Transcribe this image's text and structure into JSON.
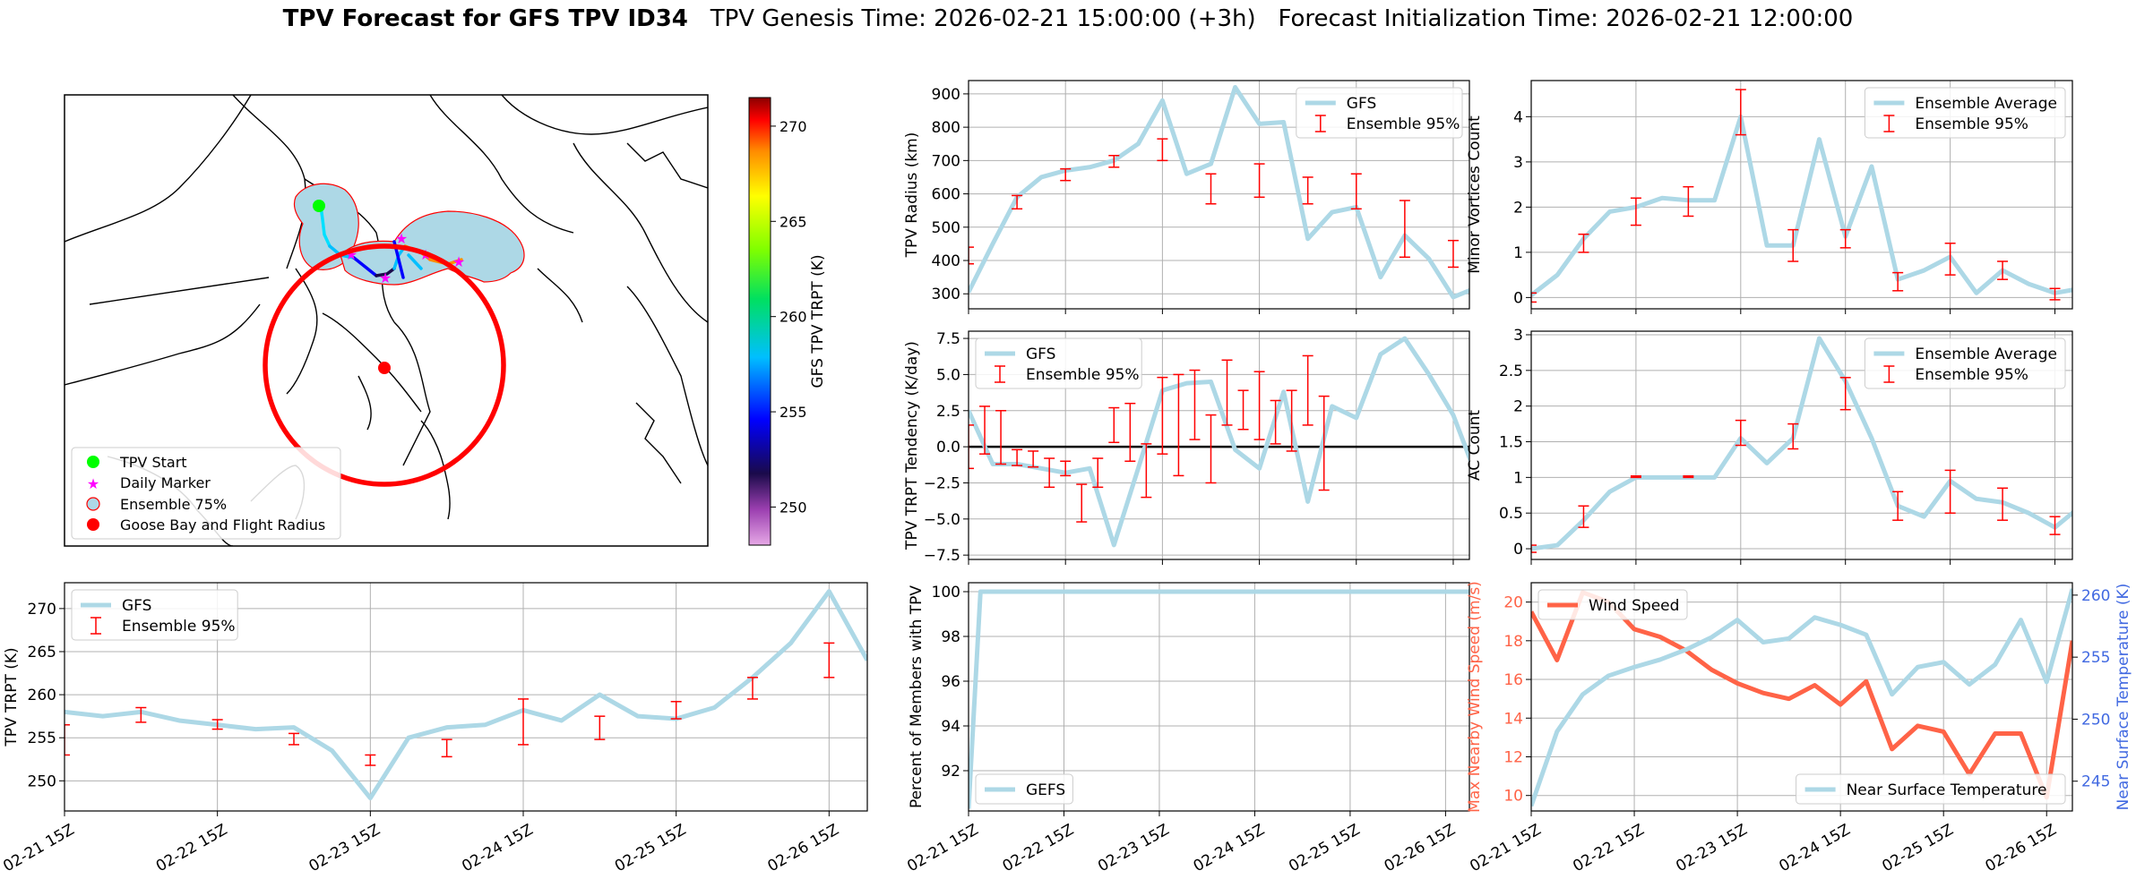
{
  "title": {
    "bold": "TPV Forecast for GFS TPV ID34",
    "genesis": "TPV Genesis Time: 2026-02-21 15:00:00 (+3h)",
    "init": "Forecast Initialization Time: 2026-02-21 12:00:00"
  },
  "colors": {
    "gfs_line": "#add8e6",
    "errorbar": "#ff0000",
    "wind": "#ff6347",
    "temp_axis": "#4169e1",
    "grid": "#b0b0b0"
  },
  "map": {
    "colorbar_label": "GFS TPV TRPT (K)",
    "colorbar_ticks": [
      250,
      255,
      260,
      265,
      270
    ],
    "colorbar_range": [
      248,
      271.5
    ],
    "legend": [
      {
        "label": "TPV Start",
        "icon": "green-dot-icon"
      },
      {
        "label": "Daily Marker",
        "icon": "magenta-star-icon"
      },
      {
        "label": "Ensemble 75%",
        "icon": "lightblue-red-outline-icon"
      },
      {
        "label": "Goose Bay and Flight Radius",
        "icon": "red-dot-icon"
      }
    ]
  },
  "x_ticks": [
    "02-21 15Z",
    "02-22 15Z",
    "02-23 15Z",
    "02-24 15Z",
    "02-25 15Z",
    "02-26 15Z"
  ],
  "chart_data": [
    {
      "id": "radius",
      "type": "line",
      "ylabel": "TPV Radius (km)",
      "ylim": [
        255,
        940
      ],
      "yticks": [
        300,
        400,
        500,
        600,
        700,
        800,
        900
      ],
      "xlim": [
        0,
        124
      ],
      "grid": true,
      "legend_position": "top-right",
      "series": [
        {
          "name": "GFS",
          "x": [
            0,
            6,
            12,
            18,
            24,
            30,
            36,
            42,
            48,
            54,
            60,
            66,
            72,
            78,
            84,
            90,
            96,
            102,
            108,
            114,
            120,
            126
          ],
          "values": [
            305,
            450,
            590,
            650,
            670,
            680,
            700,
            750,
            880,
            660,
            690,
            920,
            810,
            815,
            465,
            545,
            560,
            350,
            475,
            405,
            290,
            320
          ]
        }
      ],
      "errorbars": {
        "name": "Ensemble 95%",
        "x": [
          0,
          12,
          24,
          36,
          48,
          60,
          72,
          84,
          96,
          108,
          120,
          126
        ],
        "low": [
          390,
          555,
          640,
          680,
          700,
          570,
          590,
          570,
          555,
          410,
          380,
          370
        ],
        "high": [
          440,
          595,
          675,
          715,
          765,
          660,
          690,
          650,
          660,
          580,
          460,
          410
        ]
      }
    },
    {
      "id": "minor",
      "type": "line",
      "ylabel": "Minor Vortices Count",
      "ylim": [
        -0.25,
        4.8
      ],
      "yticks": [
        0,
        1,
        2,
        3,
        4
      ],
      "xlim": [
        0,
        124
      ],
      "grid": true,
      "legend_position": "top-right",
      "series": [
        {
          "name": "Ensemble Average",
          "x": [
            0,
            6,
            12,
            18,
            24,
            30,
            36,
            42,
            48,
            54,
            60,
            66,
            72,
            78,
            84,
            90,
            96,
            102,
            108,
            114,
            120,
            126
          ],
          "values": [
            0.05,
            0.5,
            1.3,
            1.9,
            2.0,
            2.2,
            2.15,
            2.15,
            4.0,
            1.15,
            1.15,
            3.5,
            1.35,
            2.9,
            0.4,
            0.6,
            0.9,
            0.1,
            0.6,
            0.3,
            0.1,
            0.2
          ]
        }
      ],
      "errorbars": {
        "name": "Ensemble 95%",
        "x": [
          0,
          12,
          24,
          36,
          48,
          60,
          72,
          84,
          96,
          108,
          120
        ],
        "low": [
          -0.1,
          1.0,
          1.6,
          1.8,
          3.6,
          0.8,
          1.1,
          0.15,
          0.5,
          0.4,
          -0.05
        ],
        "high": [
          0.1,
          1.4,
          2.2,
          2.45,
          4.6,
          1.5,
          1.5,
          0.55,
          1.2,
          0.8,
          0.2
        ]
      }
    },
    {
      "id": "tendency",
      "type": "line",
      "ylabel": "TPV TRPT Tendency (K/day)",
      "ylim": [
        -7.8,
        8.0
      ],
      "yticks": [
        -7.5,
        -5.0,
        -2.5,
        0.0,
        2.5,
        5.0,
        7.5
      ],
      "ytick_labels": [
        "−7.5",
        "−5.0",
        "−2.5",
        "0.0",
        "2.5",
        "5.0",
        "7.5"
      ],
      "xlim": [
        0,
        124
      ],
      "grid": true,
      "legend_position": "top-left",
      "zero_line": true,
      "series": [
        {
          "name": "GFS",
          "x": [
            0,
            6,
            12,
            18,
            24,
            30,
            36,
            42,
            48,
            54,
            60,
            66,
            72,
            78,
            84,
            90,
            96,
            102,
            108,
            114,
            120,
            126
          ],
          "values": [
            2.5,
            -1.2,
            -1.2,
            -1.5,
            -1.8,
            -1.5,
            -6.8,
            -1.5,
            3.9,
            4.4,
            4.5,
            -0.2,
            -1.5,
            3.8,
            -3.8,
            2.8,
            2.0,
            6.4,
            7.5,
            5.0,
            2.2,
            -2.2
          ]
        }
      ],
      "errorbars": {
        "name": "Ensemble 95%",
        "x": [
          0,
          4,
          8,
          12,
          16,
          20,
          24,
          28,
          32,
          36,
          40,
          44,
          48,
          52,
          56,
          60,
          64,
          68,
          72,
          76,
          80,
          84,
          88
        ],
        "low": [
          -1.5,
          -0.5,
          -1.2,
          -1.3,
          -1.4,
          -2.8,
          -2.0,
          -5.2,
          -2.8,
          0.3,
          -1.0,
          -3.5,
          -0.5,
          -2.0,
          0.5,
          -2.5,
          1.5,
          1.2,
          0.5,
          0.2,
          -0.3,
          1.5,
          -3.0
        ],
        "high": [
          1.5,
          2.8,
          2.5,
          -0.2,
          -0.3,
          -0.8,
          -1.0,
          -2.6,
          -0.8,
          2.7,
          3.0,
          0.2,
          4.8,
          5.0,
          5.3,
          2.2,
          6.0,
          3.9,
          5.2,
          3.2,
          3.9,
          6.3,
          3.5
        ]
      }
    },
    {
      "id": "ac",
      "type": "line",
      "ylabel": "AC Count",
      "ylim": [
        -0.15,
        3.05
      ],
      "yticks": [
        0.0,
        0.5,
        1.0,
        1.5,
        2.0,
        2.5,
        3.0
      ],
      "xlim": [
        0,
        124
      ],
      "grid": true,
      "legend_position": "top-right",
      "series": [
        {
          "name": "Ensemble Average",
          "x": [
            0,
            6,
            12,
            18,
            24,
            30,
            36,
            42,
            48,
            54,
            60,
            66,
            72,
            78,
            84,
            90,
            96,
            102,
            108,
            114,
            120,
            126
          ],
          "values": [
            0.0,
            0.05,
            0.4,
            0.8,
            1.0,
            1.0,
            1.0,
            1.0,
            1.55,
            1.2,
            1.55,
            2.95,
            2.35,
            1.55,
            0.6,
            0.45,
            0.95,
            0.7,
            0.65,
            0.5,
            0.3,
            0.6
          ]
        }
      ],
      "errorbars": {
        "name": "Ensemble 95%",
        "x": [
          0,
          12,
          24,
          36,
          48,
          60,
          72,
          84,
          96,
          108,
          120
        ],
        "low": [
          -0.05,
          0.3,
          1.0,
          1.0,
          1.45,
          1.4,
          1.95,
          0.4,
          0.5,
          0.4,
          0.2
        ],
        "high": [
          0.05,
          0.6,
          1.02,
          1.02,
          1.8,
          1.75,
          2.4,
          0.8,
          1.1,
          0.85,
          0.45
        ]
      }
    },
    {
      "id": "trpt",
      "type": "line",
      "ylabel": "TPV TRPT (K)",
      "ylim": [
        246.5,
        273
      ],
      "yticks": [
        250,
        255,
        260,
        265,
        270
      ],
      "xlim": [
        0,
        126
      ],
      "grid": true,
      "legend_position": "top-left",
      "series": [
        {
          "name": "GFS",
          "x": [
            0,
            6,
            12,
            18,
            24,
            30,
            36,
            42,
            48,
            54,
            60,
            66,
            72,
            78,
            84,
            90,
            96,
            102,
            108,
            114,
            120,
            126
          ],
          "values": [
            258.0,
            257.5,
            258.0,
            257.0,
            256.5,
            256.0,
            256.2,
            253.5,
            248.0,
            255.0,
            256.2,
            256.5,
            258.2,
            257.0,
            260.0,
            257.5,
            257.2,
            258.5,
            262.0,
            266.0,
            272.0,
            264.0
          ]
        }
      ],
      "errorbars": {
        "name": "Ensemble 95%",
        "x": [
          0,
          12,
          24,
          36,
          48,
          60,
          72,
          84,
          96,
          108,
          120
        ],
        "low": [
          253.0,
          256.8,
          256.0,
          254.2,
          251.8,
          252.8,
          254.2,
          254.8,
          257.2,
          259.5,
          262.0
        ],
        "high": [
          256.5,
          258.5,
          257.1,
          255.5,
          253.0,
          254.8,
          259.5,
          257.5,
          259.2,
          262.0,
          266.0
        ]
      }
    },
    {
      "id": "percent",
      "type": "line",
      "ylabel": "Percent of Members with TPV",
      "ylim": [
        90.2,
        100.4
      ],
      "yticks": [
        92,
        94,
        96,
        98,
        100
      ],
      "xlim": [
        0,
        126
      ],
      "grid": true,
      "legend_position": "bottom-left",
      "series": [
        {
          "name": "GEFS",
          "x": [
            0,
            3,
            126
          ],
          "values": [
            90.3,
            100,
            100
          ]
        }
      ]
    },
    {
      "id": "wind_temp",
      "type": "line",
      "ylabel": "Max Nearby Wind Speed (m/s)",
      "ylim": [
        9.2,
        21.0
      ],
      "yticks": [
        10,
        12,
        14,
        16,
        18,
        20
      ],
      "y2label": "Near Surface Temperature (K)",
      "y2lim": [
        242.6,
        261.0
      ],
      "y2ticks": [
        245,
        250,
        255,
        260
      ],
      "xlim": [
        0,
        126
      ],
      "grid": true,
      "series": [
        {
          "name": "Wind Speed",
          "axis": "left",
          "legend_position": "top-left",
          "x": [
            0,
            6,
            12,
            18,
            24,
            30,
            36,
            42,
            48,
            54,
            60,
            66,
            72,
            78,
            84,
            90,
            96,
            102,
            108,
            114,
            120,
            126
          ],
          "values": [
            19.5,
            17.0,
            20.5,
            20.0,
            18.6,
            18.2,
            17.5,
            16.5,
            15.8,
            15.3,
            15.0,
            15.7,
            14.7,
            15.9,
            12.4,
            13.6,
            13.3,
            11.1,
            13.2,
            13.2,
            9.9,
            18.0
          ]
        },
        {
          "name": "Near Surface Temperature",
          "axis": "right",
          "legend_position": "bottom-right",
          "x": [
            0,
            6,
            12,
            18,
            24,
            30,
            36,
            42,
            48,
            54,
            60,
            66,
            72,
            78,
            84,
            90,
            96,
            102,
            108,
            114,
            120,
            126
          ],
          "values": [
            243.0,
            249.0,
            252.0,
            253.5,
            254.2,
            254.8,
            255.6,
            256.6,
            258.0,
            256.2,
            256.5,
            258.2,
            257.6,
            256.8,
            252.0,
            254.2,
            254.6,
            252.8,
            254.4,
            258.0,
            253.0,
            260.5
          ]
        }
      ]
    }
  ]
}
